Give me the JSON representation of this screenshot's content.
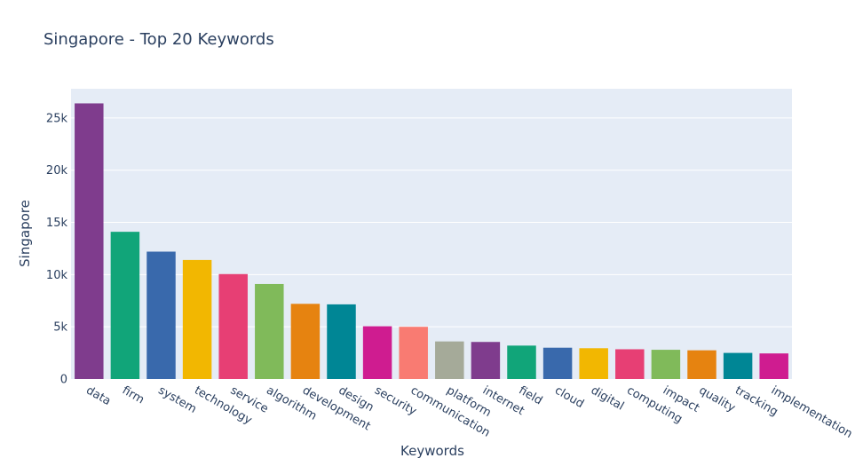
{
  "chart_data": {
    "type": "bar",
    "title": "Singapore - Top 20 Keywords",
    "xlabel": "Keywords",
    "ylabel": "Singapore",
    "ylim": [
      0,
      27800
    ],
    "yticks": [
      0,
      5000,
      10000,
      15000,
      20000,
      25000
    ],
    "ytick_labels": [
      "0",
      "5k",
      "10k",
      "15k",
      "20k",
      "25k"
    ],
    "grid": true,
    "legend": "none",
    "categories": [
      "data",
      "firm",
      "system",
      "technology",
      "service",
      "algorithm",
      "development",
      "design",
      "security",
      "communication",
      "platform",
      "internet",
      "field",
      "cloud",
      "digital",
      "computing",
      "impact",
      "quality",
      "tracking",
      "implementation"
    ],
    "values": [
      26400,
      14100,
      12200,
      11400,
      10050,
      9100,
      7200,
      7150,
      5050,
      5000,
      3600,
      3550,
      3200,
      3000,
      2950,
      2850,
      2800,
      2750,
      2500,
      2450
    ],
    "colors": [
      "#7F3C8D",
      "#11A579",
      "#3969AC",
      "#F2B701",
      "#E73F74",
      "#80BA5A",
      "#E68310",
      "#008695",
      "#CF1C90",
      "#F97B72",
      "#A5AA99",
      "#7F3C8D",
      "#11A579",
      "#3969AC",
      "#F2B701",
      "#E73F74",
      "#80BA5A",
      "#E68310",
      "#008695",
      "#CF1C90"
    ],
    "plot_background": "#E5ECF6",
    "text_color": "#2a3f5f"
  }
}
